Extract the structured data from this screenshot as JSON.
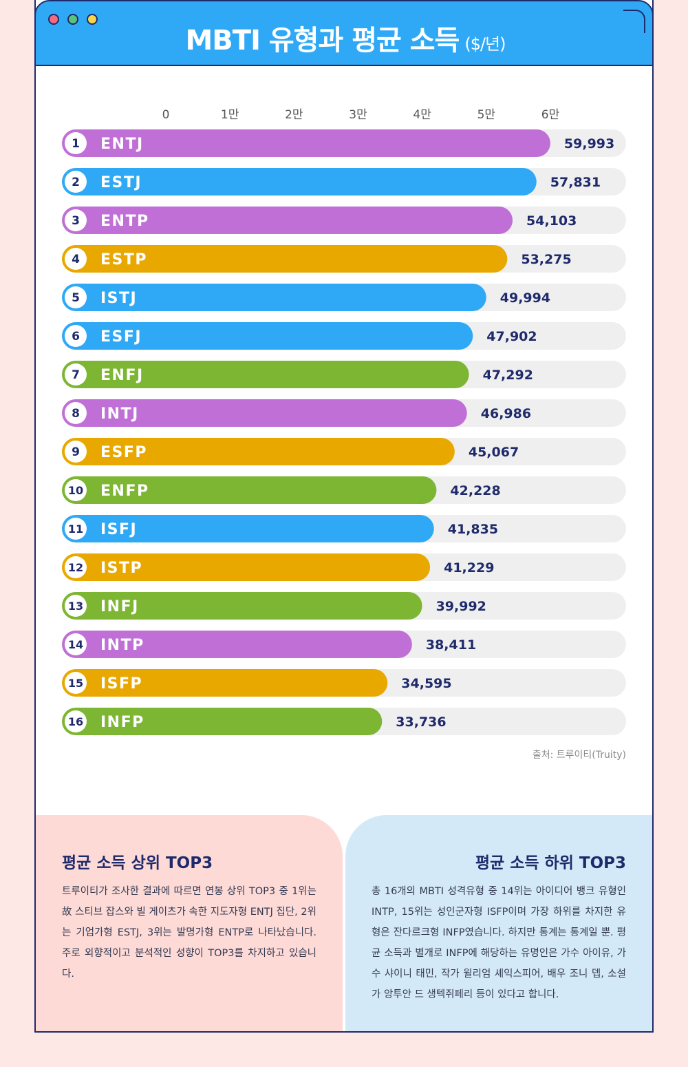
{
  "window": {
    "title": "MBTI 유형과 평균 소득",
    "title_unit": "($/년)"
  },
  "colors": {
    "titlebar": "#2fa9f6",
    "purple": "#bf6fd6",
    "blue": "#2fa9f6",
    "gold": "#e8a800",
    "green": "#7cb632",
    "track": "#efefef",
    "navy": "#1f2a6b"
  },
  "chart_data": {
    "type": "bar",
    "orientation": "horizontal",
    "xlim": [
      0,
      70000
    ],
    "ticks": [
      {
        "value": 0,
        "label": "0"
      },
      {
        "value": 10000,
        "label": "1만"
      },
      {
        "value": 20000,
        "label": "2만"
      },
      {
        "value": 30000,
        "label": "3만"
      },
      {
        "value": 40000,
        "label": "4만"
      },
      {
        "value": 50000,
        "label": "5만"
      },
      {
        "value": 60000,
        "label": "6만"
      }
    ],
    "bars": [
      {
        "rank": "1",
        "type": "ENTJ",
        "value": 59993,
        "label": "59,993",
        "color": "#bf6fd6"
      },
      {
        "rank": "2",
        "type": "ESTJ",
        "value": 57831,
        "label": "57,831",
        "color": "#2fa9f6"
      },
      {
        "rank": "3",
        "type": "ENTP",
        "value": 54103,
        "label": "54,103",
        "color": "#bf6fd6"
      },
      {
        "rank": "4",
        "type": "ESTP",
        "value": 53275,
        "label": "53,275",
        "color": "#e8a800"
      },
      {
        "rank": "5",
        "type": "ISTJ",
        "value": 49994,
        "label": "49,994",
        "color": "#2fa9f6"
      },
      {
        "rank": "6",
        "type": "ESFJ",
        "value": 47902,
        "label": "47,902",
        "color": "#2fa9f6"
      },
      {
        "rank": "7",
        "type": "ENFJ",
        "value": 47292,
        "label": "47,292",
        "color": "#7cb632"
      },
      {
        "rank": "8",
        "type": "INTJ",
        "value": 46986,
        "label": "46,986",
        "color": "#bf6fd6"
      },
      {
        "rank": "9",
        "type": "ESFP",
        "value": 45067,
        "label": "45,067",
        "color": "#e8a800"
      },
      {
        "rank": "10",
        "type": "ENFP",
        "value": 42228,
        "label": "42,228",
        "color": "#7cb632"
      },
      {
        "rank": "11",
        "type": "ISFJ",
        "value": 41835,
        "label": "41,835",
        "color": "#2fa9f6"
      },
      {
        "rank": "12",
        "type": "ISTP",
        "value": 41229,
        "label": "41,229",
        "color": "#e8a800"
      },
      {
        "rank": "13",
        "type": "INFJ",
        "value": 39992,
        "label": "39,992",
        "color": "#7cb632"
      },
      {
        "rank": "14",
        "type": "INTP",
        "value": 38411,
        "label": "38,411",
        "color": "#bf6fd6"
      },
      {
        "rank": "15",
        "type": "ISFP",
        "value": 34595,
        "label": "34,595",
        "color": "#e8a800"
      },
      {
        "rank": "16",
        "type": "INFP",
        "value": 33736,
        "label": "33,736",
        "color": "#7cb632"
      }
    ],
    "source": "출처: 트루이티(Truity)"
  },
  "panels": {
    "top": {
      "title": "평균 소득 상위 TOP3",
      "body": "트루이티가 조사한 결과에 따르면 연봉 상위 TOP3 중 1위는 故 스티브 잡스와 빌 게이츠가 속한 지도자형 ENTJ 집단, 2위는 기업가형 ESTJ, 3위는 발명가형 ENTP로 나타났습니다. 주로 외향적이고 분석적인 성향이 TOP3를 차지하고 있습니다."
    },
    "bottom": {
      "title": "평균 소득 하위 TOP3",
      "body": "총 16개의 MBTI 성격유형 중 14위는 아이디어 뱅크 유형인 INTP, 15위는 성인군자형 ISFP이며 가장 하위를 차지한 유형은 잔다르크형 INFP였습니다. 하지만 통계는 통계일 뿐. 평균 소득과 별개로 INFP에 해당하는 유명인은 가수 아이유, 가수 샤이니 태민, 작가 윌리엄 셰익스피어, 배우 조니 뎁, 소설가 앙투안 드 생텍쥐페리 등이 있다고 합니다."
    }
  }
}
